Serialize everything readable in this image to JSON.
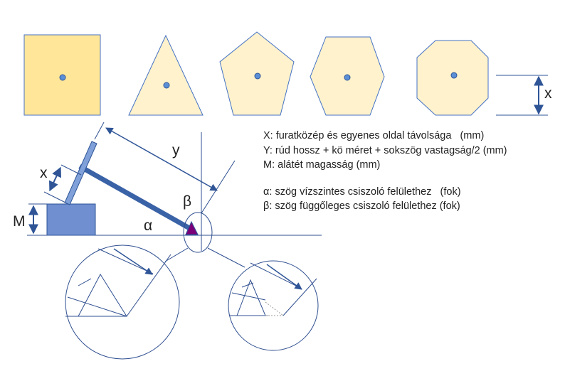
{
  "colors": {
    "square_fill": "#ffe699",
    "shape_fill": "#fff2cc",
    "shape_stroke": "#4472c4",
    "center_dot": "#5b8fd6",
    "line_blue": "#2f5597",
    "rod_blue": "#3a62a7",
    "block_fill": "#6f8fd0",
    "thin_line": "#2f4f90",
    "marker_purple": "#7a007a"
  },
  "labels": {
    "x_shape": "x",
    "x_rod": "x",
    "y": "y",
    "M": "M",
    "alpha": "α",
    "beta": "β"
  },
  "legend": {
    "line1": "X: furatközép és egyenes oldal távolsága   (mm)",
    "line2": "Y: rúd hossz + kö méret + sokszög vastagság/2 (mm)",
    "line3": "M: alátét magasság (mm)",
    "line4": "α: szög vízszintes csiszoló felülethez   (fok)",
    "line5": "β: szög függőleges csiszoló felülethez (fok)"
  }
}
